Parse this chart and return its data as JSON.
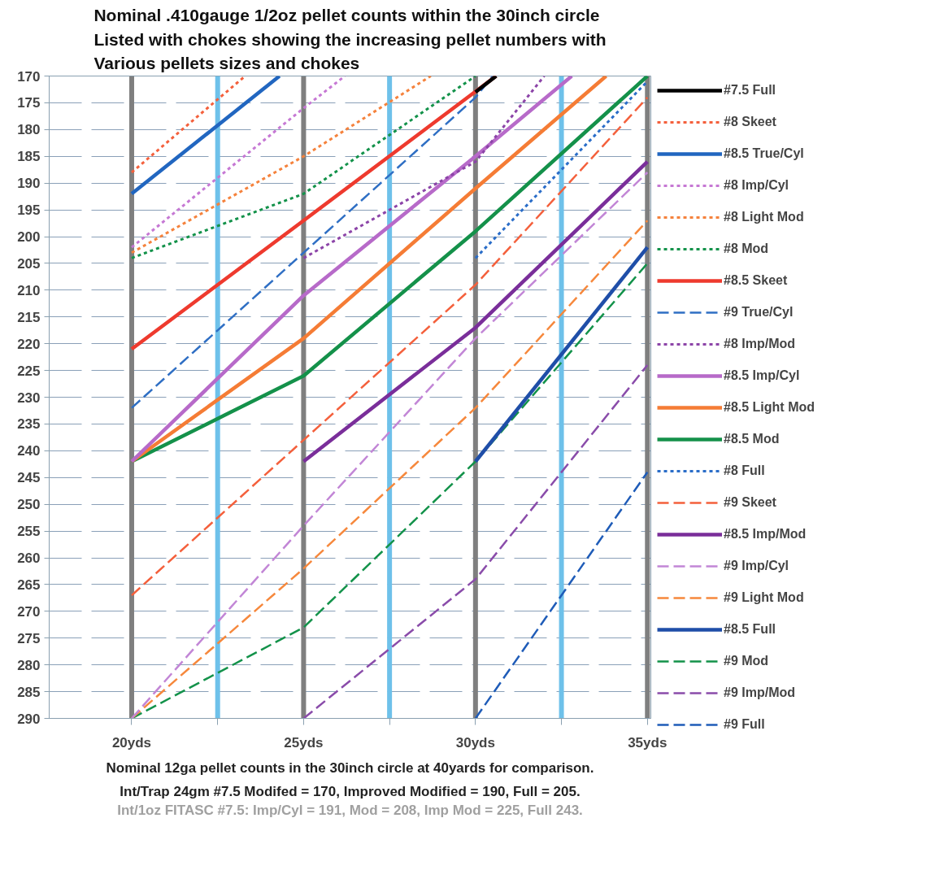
{
  "chart_data": {
    "type": "line",
    "title": "Nominal .410gauge 1/2oz pellet counts within the 30inch circle\nListed with chokes showing the increasing pellet numbers with\nVarious pellets sizes and chokes",
    "annotations": [
      "Nominal 12ga pellet counts in the 30inch circle at 40yards for comparison.",
      "Int/Trap 24gm #7.5 Modifed = 170, Improved Modified = 190, Full = 205.",
      "Int/1oz FITASC #7.5: Imp/Cyl = 191, Mod = 208, Imp Mod = 225, Full 243."
    ],
    "xlim": [
      17.6,
      35.1
    ],
    "xticks": [
      {
        "value": 20,
        "label": "20yds"
      },
      {
        "value": 22.5,
        "label": null
      },
      {
        "value": 25,
        "label": "25yds"
      },
      {
        "value": 27.5,
        "label": null
      },
      {
        "value": 30,
        "label": "30yds"
      },
      {
        "value": 32.5,
        "label": null
      },
      {
        "value": 35,
        "label": "35yds"
      }
    ],
    "ylim": [
      290,
      170
    ],
    "yticks": [
      170,
      175,
      180,
      185,
      190,
      195,
      200,
      205,
      210,
      215,
      220,
      225,
      230,
      235,
      240,
      245,
      250,
      255,
      260,
      265,
      270,
      275,
      280,
      285,
      290
    ],
    "grid": "y",
    "legend": "right",
    "ref_lines": [
      {
        "axis": "x",
        "value": 20,
        "color": "#7f7f7f"
      },
      {
        "axis": "x",
        "value": 22.5,
        "color": "#6ec1ea"
      },
      {
        "axis": "x",
        "value": 25,
        "color": "#7f7f7f"
      },
      {
        "axis": "x",
        "value": 27.5,
        "color": "#6ec1ea"
      },
      {
        "axis": "x",
        "value": 30,
        "color": "#7f7f7f"
      },
      {
        "axis": "x",
        "value": 32.5,
        "color": "#6ec1ea"
      },
      {
        "axis": "x",
        "value": 35,
        "color": "#7f7f7f"
      }
    ],
    "series": [
      {
        "name": "#7.5 Full",
        "color": "#000000",
        "line_style": "solid",
        "x": [
          30,
          30.6
        ],
        "values": [
          173,
          170
        ]
      },
      {
        "name": "#8 Skeet",
        "color": "#f4603c",
        "line_style": "dotted",
        "x": [
          20,
          23.3
        ],
        "values": [
          188,
          170
        ]
      },
      {
        "name": "#8.5 True/Cyl",
        "color": "#2166c0",
        "line_style": "solid",
        "x": [
          20,
          24.3
        ],
        "values": [
          192,
          170
        ]
      },
      {
        "name": "#8 Imp/Cyl",
        "color": "#c678d4",
        "line_style": "dotted",
        "x": [
          20,
          25,
          26.2
        ],
        "values": [
          202,
          176,
          170
        ]
      },
      {
        "name": "#8 Light Mod",
        "color": "#f5823c",
        "line_style": "dotted",
        "x": [
          20,
          25,
          28.7
        ],
        "values": [
          203,
          185,
          170
        ]
      },
      {
        "name": "#8 Mod",
        "color": "#13924a",
        "line_style": "dotted",
        "x": [
          20,
          25,
          30
        ],
        "values": [
          204,
          192,
          170
        ]
      },
      {
        "name": "#8.5 Skeet",
        "color": "#ee3a2e",
        "line_style": "solid",
        "x": [
          20,
          25,
          30.6
        ],
        "values": [
          221,
          197,
          170
        ]
      },
      {
        "name": "#9 True/Cyl",
        "color": "#2f6fc4",
        "line_style": "dashed",
        "x": [
          20,
          25,
          30,
          30.5
        ],
        "values": [
          232,
          203,
          174,
          170
        ]
      },
      {
        "name": "#8 Imp/Mod",
        "color": "#8c44a8",
        "line_style": "dotted",
        "x": [
          25,
          30,
          32
        ],
        "values": [
          204,
          186,
          170
        ]
      },
      {
        "name": "#8.5 Imp/Cyl",
        "color": "#b76ac9",
        "line_style": "solid",
        "x": [
          20,
          25,
          30,
          32.8
        ],
        "values": [
          242,
          211,
          185,
          170
        ]
      },
      {
        "name": "#8.5 Light Mod",
        "color": "#f57c35",
        "line_style": "solid",
        "x": [
          20,
          25,
          30,
          33.8
        ],
        "values": [
          242,
          219,
          191,
          170
        ]
      },
      {
        "name": "#8.5 Mod",
        "color": "#14914a",
        "line_style": "solid",
        "x": [
          20,
          25,
          30,
          35
        ],
        "values": [
          242,
          226,
          199,
          170
        ]
      },
      {
        "name": "#8 Full",
        "color": "#2a6dc8",
        "line_style": "dotted",
        "x": [
          30,
          35
        ],
        "values": [
          204,
          171
        ]
      },
      {
        "name": "#9 Skeet",
        "color": "#f4603c",
        "line_style": "dashed",
        "x": [
          20,
          25,
          30,
          35
        ],
        "values": [
          267,
          238,
          209,
          174
        ]
      },
      {
        "name": "#8.5 Imp/Mod",
        "color": "#7a2e9a",
        "line_style": "solid",
        "x": [
          25,
          30,
          35
        ],
        "values": [
          242,
          217,
          186
        ]
      },
      {
        "name": "#9 Imp/Cyl",
        "color": "#c286d6",
        "line_style": "dashed",
        "x": [
          20,
          25,
          30,
          35
        ],
        "values": [
          290,
          254,
          219,
          188
        ]
      },
      {
        "name": "#9 Light Mod",
        "color": "#f6883c",
        "line_style": "dashed",
        "x": [
          20,
          25,
          30,
          35
        ],
        "values": [
          290,
          262,
          232,
          197
        ]
      },
      {
        "name": "#8.5 Full",
        "color": "#1f4ea8",
        "line_style": "solid",
        "x": [
          30,
          35
        ],
        "values": [
          242,
          202
        ]
      },
      {
        "name": "#9 Mod",
        "color": "#13924a",
        "line_style": "dashed",
        "x": [
          20,
          25,
          30,
          35
        ],
        "values": [
          290,
          273,
          242,
          205
        ]
      },
      {
        "name": "#9 Imp/Mod",
        "color": "#8a4caa",
        "line_style": "dashed",
        "x": [
          25,
          30,
          35
        ],
        "values": [
          290,
          264,
          224
        ]
      },
      {
        "name": "#9 Full",
        "color": "#1f5cb8",
        "line_style": "dashed",
        "x": [
          30,
          35
        ],
        "values": [
          290,
          244
        ]
      }
    ]
  }
}
